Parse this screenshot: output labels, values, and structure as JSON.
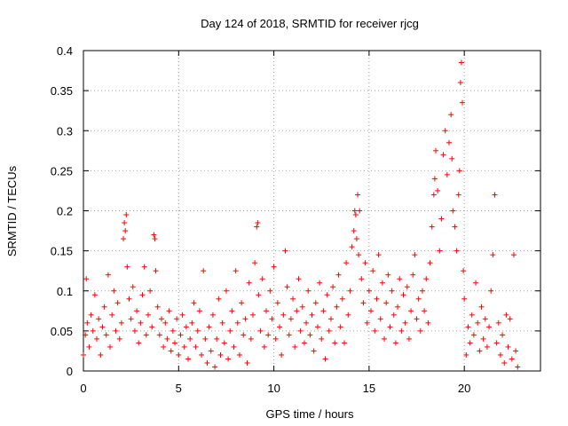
{
  "chart_data": {
    "type": "scatter",
    "title": "Day 124 of 2018, SRMTID for receiver rjcg",
    "xlabel": "GPS time / hours",
    "ylabel": "SRMTID / TECUs",
    "xlim": [
      0,
      24
    ],
    "ylim": [
      0,
      0.4
    ],
    "xticks": [
      0,
      5,
      10,
      15,
      20
    ],
    "xtick_labels": [
      "0",
      "5",
      "10",
      "15",
      "20"
    ],
    "yticks": [
      0,
      0.05,
      0.1,
      0.15,
      0.2,
      0.25,
      0.3,
      0.35,
      0.4
    ],
    "ytick_labels": [
      "0",
      "0.05",
      "0.1",
      "0.15",
      "0.2",
      "0.25",
      "0.3",
      "0.35",
      "0.4"
    ],
    "grid": true,
    "marker": "plus",
    "color": "#ff0000",
    "series": [
      {
        "name": "SRMTID",
        "points": [
          [
            0.0,
            0.02
          ],
          [
            0.1,
            0.045
          ],
          [
            0.15,
            0.115
          ],
          [
            0.2,
            0.06
          ],
          [
            0.3,
            0.03
          ],
          [
            0.4,
            0.07
          ],
          [
            0.5,
            0.05
          ],
          [
            0.6,
            0.095
          ],
          [
            0.7,
            0.04
          ],
          [
            0.8,
            0.065
          ],
          [
            0.9,
            0.02
          ],
          [
            1.0,
            0.055
          ],
          [
            1.1,
            0.08
          ],
          [
            1.2,
            0.045
          ],
          [
            1.3,
            0.12
          ],
          [
            1.4,
            0.03
          ],
          [
            1.5,
            0.07
          ],
          [
            1.6,
            0.1
          ],
          [
            1.7,
            0.05
          ],
          [
            1.8,
            0.085
          ],
          [
            1.9,
            0.04
          ],
          [
            2.0,
            0.06
          ],
          [
            2.1,
            0.165
          ],
          [
            2.15,
            0.185
          ],
          [
            2.2,
            0.175
          ],
          [
            2.25,
            0.195
          ],
          [
            2.3,
            0.13
          ],
          [
            2.4,
            0.09
          ],
          [
            2.5,
            0.065
          ],
          [
            2.6,
            0.105
          ],
          [
            2.7,
            0.05
          ],
          [
            2.8,
            0.075
          ],
          [
            2.9,
            0.035
          ],
          [
            3.0,
            0.06
          ],
          [
            3.1,
            0.095
          ],
          [
            3.2,
            0.13
          ],
          [
            3.3,
            0.045
          ],
          [
            3.4,
            0.07
          ],
          [
            3.5,
            0.1
          ],
          [
            3.6,
            0.055
          ],
          [
            3.7,
            0.17
          ],
          [
            3.75,
            0.165
          ],
          [
            3.8,
            0.125
          ],
          [
            3.9,
            0.08
          ],
          [
            4.0,
            0.045
          ],
          [
            4.1,
            0.065
          ],
          [
            4.2,
            0.03
          ],
          [
            4.3,
            0.06
          ],
          [
            4.4,
            0.04
          ],
          [
            4.5,
            0.075
          ],
          [
            4.6,
            0.025
          ],
          [
            4.7,
            0.05
          ],
          [
            4.8,
            0.035
          ],
          [
            4.9,
            0.065
          ],
          [
            5.0,
            0.02
          ],
          [
            5.1,
            0.045
          ],
          [
            5.2,
            0.07
          ],
          [
            5.3,
            0.03
          ],
          [
            5.4,
            0.055
          ],
          [
            5.5,
            0.015
          ],
          [
            5.6,
            0.04
          ],
          [
            5.7,
            0.06
          ],
          [
            5.8,
            0.085
          ],
          [
            5.9,
            0.03
          ],
          [
            6.0,
            0.05
          ],
          [
            6.1,
            0.075
          ],
          [
            6.2,
            0.02
          ],
          [
            6.3,
            0.125
          ],
          [
            6.4,
            0.04
          ],
          [
            6.5,
            0.01
          ],
          [
            6.6,
            0.055
          ],
          [
            6.7,
            0.025
          ],
          [
            6.8,
            0.07
          ],
          [
            6.9,
            0.005
          ],
          [
            7.0,
            0.04
          ],
          [
            7.1,
            0.09
          ],
          [
            7.2,
            0.02
          ],
          [
            7.3,
            0.06
          ],
          [
            7.4,
            0.035
          ],
          [
            7.5,
            0.1
          ],
          [
            7.6,
            0.015
          ],
          [
            7.7,
            0.05
          ],
          [
            7.8,
            0.075
          ],
          [
            7.9,
            0.03
          ],
          [
            8.0,
            0.125
          ],
          [
            8.1,
            0.06
          ],
          [
            8.2,
            0.02
          ],
          [
            8.3,
            0.085
          ],
          [
            8.4,
            0.045
          ],
          [
            8.5,
            0.065
          ],
          [
            8.6,
            0.01
          ],
          [
            8.7,
            0.11
          ],
          [
            8.8,
            0.04
          ],
          [
            8.9,
            0.07
          ],
          [
            9.0,
            0.135
          ],
          [
            9.1,
            0.18
          ],
          [
            9.15,
            0.185
          ],
          [
            9.2,
            0.095
          ],
          [
            9.3,
            0.05
          ],
          [
            9.4,
            0.115
          ],
          [
            9.5,
            0.03
          ],
          [
            9.6,
            0.075
          ],
          [
            9.7,
            0.045
          ],
          [
            9.8,
            0.1
          ],
          [
            9.9,
            0.065
          ],
          [
            10.0,
            0.13
          ],
          [
            10.1,
            0.04
          ],
          [
            10.2,
            0.085
          ],
          [
            10.3,
            0.055
          ],
          [
            10.4,
            0.02
          ],
          [
            10.5,
            0.07
          ],
          [
            10.6,
            0.15
          ],
          [
            10.7,
            0.105
          ],
          [
            10.8,
            0.045
          ],
          [
            10.9,
            0.065
          ],
          [
            11.0,
            0.09
          ],
          [
            11.1,
            0.03
          ],
          [
            11.2,
            0.075
          ],
          [
            11.3,
            0.115
          ],
          [
            11.4,
            0.05
          ],
          [
            11.5,
            0.08
          ],
          [
            11.6,
            0.035
          ],
          [
            11.7,
            0.06
          ],
          [
            11.8,
            0.1
          ],
          [
            11.9,
            0.045
          ],
          [
            12.0,
            0.07
          ],
          [
            12.1,
            0.025
          ],
          [
            12.2,
            0.085
          ],
          [
            12.3,
            0.055
          ],
          [
            12.4,
            0.11
          ],
          [
            12.5,
            0.04
          ],
          [
            12.6,
            0.075
          ],
          [
            12.7,
            0.015
          ],
          [
            12.8,
            0.095
          ],
          [
            12.9,
            0.05
          ],
          [
            13.0,
            0.065
          ],
          [
            13.1,
            0.105
          ],
          [
            13.2,
            0.035
          ],
          [
            13.3,
            0.08
          ],
          [
            13.4,
            0.12
          ],
          [
            13.5,
            0.055
          ],
          [
            13.6,
            0.09
          ],
          [
            13.7,
            0.035
          ],
          [
            13.8,
            0.135
          ],
          [
            13.9,
            0.07
          ],
          [
            14.0,
            0.1
          ],
          [
            14.1,
            0.155
          ],
          [
            14.2,
            0.175
          ],
          [
            14.25,
            0.2
          ],
          [
            14.3,
            0.195
          ],
          [
            14.35,
            0.165
          ],
          [
            14.4,
            0.22
          ],
          [
            14.45,
            0.145
          ],
          [
            14.5,
            0.2
          ],
          [
            14.6,
            0.115
          ],
          [
            14.7,
            0.085
          ],
          [
            14.8,
            0.135
          ],
          [
            14.9,
            0.06
          ],
          [
            15.0,
            0.1
          ],
          [
            15.1,
            0.075
          ],
          [
            15.2,
            0.125
          ],
          [
            15.3,
            0.05
          ],
          [
            15.4,
            0.09
          ],
          [
            15.5,
            0.145
          ],
          [
            15.6,
            0.065
          ],
          [
            15.7,
            0.11
          ],
          [
            15.8,
            0.04
          ],
          [
            15.9,
            0.085
          ],
          [
            16.0,
            0.12
          ],
          [
            16.1,
            0.055
          ],
          [
            16.2,
            0.1
          ],
          [
            16.3,
            0.07
          ],
          [
            16.4,
            0.035
          ],
          [
            16.5,
            0.08
          ],
          [
            16.6,
            0.115
          ],
          [
            16.7,
            0.05
          ],
          [
            16.8,
            0.095
          ],
          [
            16.9,
            0.06
          ],
          [
            17.0,
            0.105
          ],
          [
            17.1,
            0.04
          ],
          [
            17.2,
            0.075
          ],
          [
            17.3,
            0.12
          ],
          [
            17.4,
            0.145
          ],
          [
            17.5,
            0.065
          ],
          [
            17.6,
            0.09
          ],
          [
            17.7,
            0.05
          ],
          [
            17.8,
            0.1
          ],
          [
            17.9,
            0.075
          ],
          [
            18.0,
            0.115
          ],
          [
            18.1,
            0.06
          ],
          [
            18.2,
            0.135
          ],
          [
            18.3,
            0.18
          ],
          [
            18.4,
            0.22
          ],
          [
            18.45,
            0.24
          ],
          [
            18.5,
            0.275
          ],
          [
            18.6,
            0.225
          ],
          [
            18.7,
            0.15
          ],
          [
            18.8,
            0.19
          ],
          [
            18.9,
            0.27
          ],
          [
            19.0,
            0.3
          ],
          [
            19.1,
            0.245
          ],
          [
            19.2,
            0.285
          ],
          [
            19.3,
            0.32
          ],
          [
            19.35,
            0.265
          ],
          [
            19.4,
            0.2
          ],
          [
            19.5,
            0.18
          ],
          [
            19.6,
            0.15
          ],
          [
            19.7,
            0.22
          ],
          [
            19.75,
            0.25
          ],
          [
            19.8,
            0.36
          ],
          [
            19.85,
            0.385
          ],
          [
            19.9,
            0.335
          ],
          [
            19.95,
            0.125
          ],
          [
            20.0,
            0.09
          ],
          [
            20.1,
            0.02
          ],
          [
            20.2,
            0.055
          ],
          [
            20.3,
            0.035
          ],
          [
            20.4,
            0.07
          ],
          [
            20.5,
            0.045
          ],
          [
            20.6,
            0.11
          ],
          [
            20.7,
            0.06
          ],
          [
            20.8,
            0.025
          ],
          [
            20.9,
            0.08
          ],
          [
            21.0,
            0.04
          ],
          [
            21.1,
            0.065
          ],
          [
            21.2,
            0.03
          ],
          [
            21.3,
            0.055
          ],
          [
            21.4,
            0.1
          ],
          [
            21.5,
            0.145
          ],
          [
            21.6,
            0.22
          ],
          [
            21.7,
            0.035
          ],
          [
            21.8,
            0.06
          ],
          [
            21.9,
            0.02
          ],
          [
            22.0,
            0.045
          ],
          [
            22.1,
            0.01
          ],
          [
            22.2,
            0.07
          ],
          [
            22.3,
            0.03
          ],
          [
            22.4,
            0.065
          ],
          [
            22.5,
            0.015
          ],
          [
            22.6,
            0.145
          ],
          [
            22.7,
            0.025
          ],
          [
            22.8,
            0.005
          ]
        ]
      }
    ]
  }
}
